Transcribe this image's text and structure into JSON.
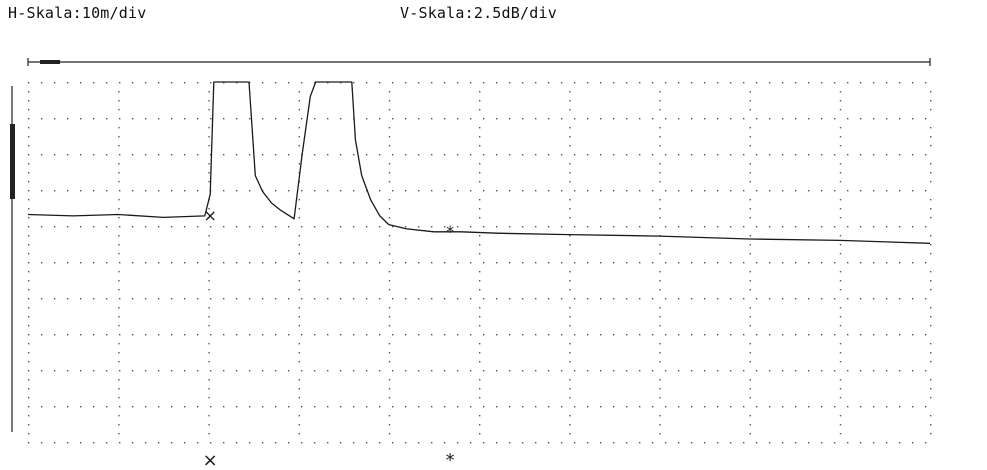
{
  "header": {
    "h_scale": "H-Skala:10m/div",
    "v_scale": "V-Skala:2.5dB/div"
  },
  "colors": {
    "trace": "#1a1a1a",
    "grid_dots": "#555555",
    "frame": "#222222",
    "background": "#ffffff"
  },
  "chart_data": {
    "type": "line",
    "title": "",
    "xlabel": "",
    "ylabel": "",
    "x_unit": "m",
    "y_unit": "dB",
    "x_per_div": 10,
    "y_per_div": 2.5,
    "xlim": [
      0,
      100
    ],
    "ylim": [
      -25,
      0
    ],
    "grid": true,
    "series": [
      {
        "name": "",
        "x": [
          0,
          5,
          10,
          15,
          19.6,
          20.2,
          20.6,
          24.5,
          25.2,
          26,
          27,
          28,
          29.5,
          30.4,
          31.3,
          31.9,
          32.3,
          35.9,
          36.3,
          37,
          38,
          39,
          40,
          42,
          45,
          48,
          52,
          60,
          70,
          80,
          90,
          100
        ],
        "y": [
          -9.2,
          -9.3,
          -9.2,
          -9.4,
          -9.3,
          -7.8,
          0,
          0,
          -6.5,
          -7.6,
          -8.4,
          -8.9,
          -9.5,
          -5.0,
          -1.0,
          0,
          0,
          0,
          -4.0,
          -6.5,
          -8.2,
          -9.3,
          -9.9,
          -10.2,
          -10.4,
          -10.4,
          -10.5,
          -10.6,
          -10.7,
          -10.9,
          -11.0,
          -11.2
        ]
      }
    ],
    "markers": [
      {
        "symbol": "×",
        "x": 20.2,
        "y": -9.3
      },
      {
        "symbol": "*",
        "x": 46.8,
        "y": -10.4
      }
    ],
    "cursors": [
      {
        "symbol": "×",
        "x": 20.2
      },
      {
        "symbol": "*",
        "x": 46.8
      }
    ]
  }
}
